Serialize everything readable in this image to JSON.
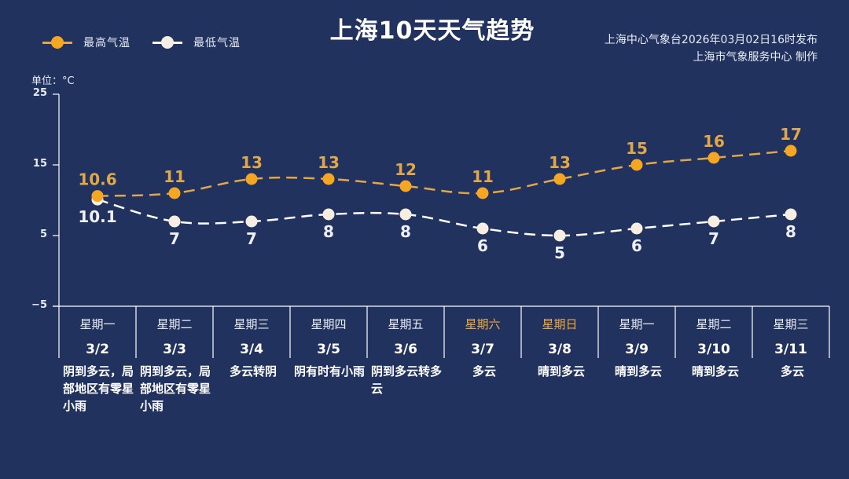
{
  "header": {
    "title": "上海10天天气趋势",
    "issuer_line1": "上海中心气象台2026年03月02日16时发布",
    "issuer_line2": "上海市气象服务中心 制作"
  },
  "legend": {
    "high_label": "最高气温",
    "low_label": "最低气温"
  },
  "axis": {
    "unit_label": "单位：°C",
    "ticks": [
      "25",
      "15",
      "5",
      "−5"
    ]
  },
  "colors": {
    "background": "#22325f",
    "high": "#f5a623",
    "high_line": "#e0a84a",
    "low": "#f6eee2",
    "low_line": "#ffffff",
    "weekend": "#f2a93b",
    "grid": "#ffffff"
  },
  "days": [
    {
      "weekday": "星期一",
      "date": "3/2",
      "condition": "阴到多云，局部地区有零星小雨",
      "weekend": false
    },
    {
      "weekday": "星期二",
      "date": "3/3",
      "condition": "阴到多云，局部地区有零星小雨",
      "weekend": false
    },
    {
      "weekday": "星期三",
      "date": "3/4",
      "condition": "多云转阴",
      "weekend": false
    },
    {
      "weekday": "星期四",
      "date": "3/5",
      "condition": "阴有时有小雨",
      "weekend": false
    },
    {
      "weekday": "星期五",
      "date": "3/6",
      "condition": "阴到多云转多云",
      "weekend": false
    },
    {
      "weekday": "星期六",
      "date": "3/7",
      "condition": "多云",
      "weekend": true
    },
    {
      "weekday": "星期日",
      "date": "3/8",
      "condition": "晴到多云",
      "weekend": true
    },
    {
      "weekday": "星期一",
      "date": "3/9",
      "condition": "晴到多云",
      "weekend": false
    },
    {
      "weekday": "星期二",
      "date": "3/10",
      "condition": "晴到多云",
      "weekend": false
    },
    {
      "weekday": "星期三",
      "date": "3/11",
      "condition": "多云",
      "weekend": false
    }
  ],
  "chart_data": {
    "type": "line",
    "title": "上海10天天气趋势",
    "xlabel": "",
    "ylabel": "单位：°C",
    "ylim": [
      -5,
      25
    ],
    "yticks": [
      -5,
      5,
      15,
      25
    ],
    "grid": false,
    "legend_position": "top-left",
    "categories": [
      "3/2",
      "3/3",
      "3/4",
      "3/5",
      "3/6",
      "3/7",
      "3/8",
      "3/9",
      "3/10",
      "3/11"
    ],
    "weekdays": [
      "星期一",
      "星期二",
      "星期三",
      "星期四",
      "星期五",
      "星期六",
      "星期日",
      "星期一",
      "星期二",
      "星期三"
    ],
    "series": [
      {
        "name": "最高气温",
        "color": "#f5a623",
        "line_style": "dashed",
        "values": [
          10.6,
          11,
          13,
          13,
          12,
          11,
          13,
          15,
          16,
          17
        ],
        "labels": [
          "10.6",
          "11",
          "13",
          "13",
          "12",
          "11",
          "13",
          "15",
          "16",
          "17"
        ]
      },
      {
        "name": "最低气温",
        "color": "#f6eee2",
        "line_style": "dashed",
        "values": [
          10.1,
          7,
          7,
          8,
          8,
          6,
          5,
          6,
          7,
          8
        ],
        "labels": [
          "10.1",
          "7",
          "7",
          "8",
          "8",
          "6",
          "5",
          "6",
          "7",
          "8"
        ]
      }
    ]
  }
}
